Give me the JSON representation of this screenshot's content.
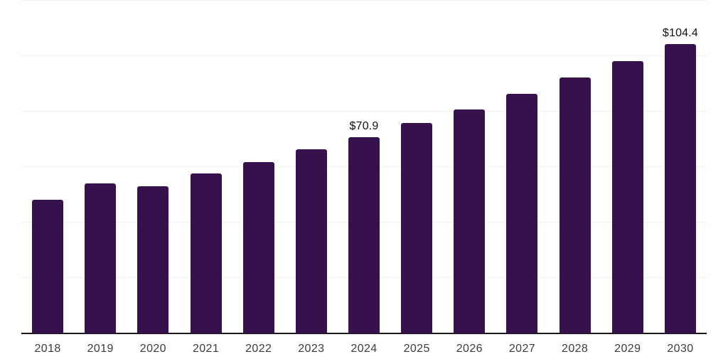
{
  "chart_data": {
    "type": "bar",
    "title": "",
    "categories": [
      "2018",
      "2019",
      "2020",
      "2021",
      "2022",
      "2023",
      "2024",
      "2025",
      "2026",
      "2027",
      "2028",
      "2029",
      "2030"
    ],
    "values": [
      48.1,
      54.0,
      53.2,
      57.8,
      61.9,
      66.3,
      70.9,
      75.8,
      80.7,
      86.4,
      92.3,
      98.2,
      104.4
    ],
    "data_labels": {
      "2024": "$70.9",
      "2030": "$104.4"
    },
    "xlabel": "",
    "ylabel": "",
    "ylim": [
      0,
      120
    ],
    "gridline_values": [
      20,
      40,
      60,
      80,
      100,
      120
    ],
    "grid": "horizontal-only",
    "legend_position": "none",
    "y_axis_tick_labels_visible": false,
    "colors": {
      "bar": "#36114C",
      "gridline": "#F0F0F0",
      "axis_line": "#1A1A1A",
      "tick_label": "#3C3C3C",
      "data_label": "#111111",
      "background": "#FFFFFF"
    }
  }
}
